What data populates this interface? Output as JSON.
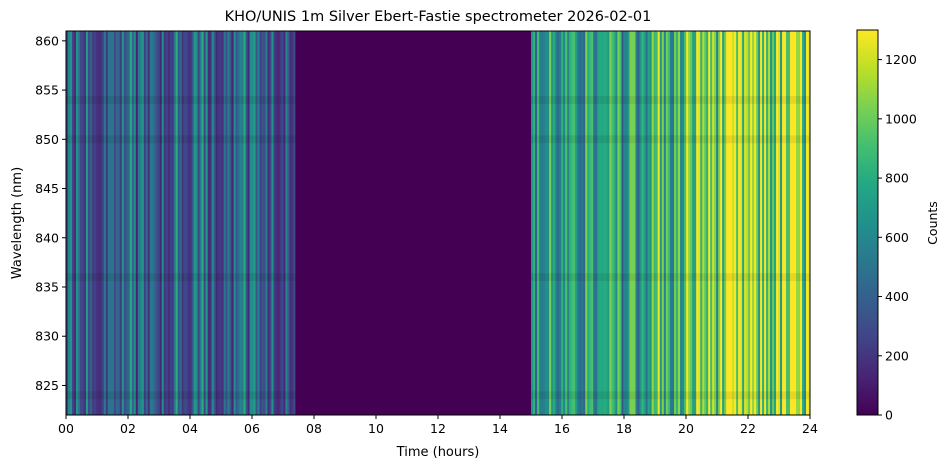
{
  "chart_data": {
    "type": "heatmap",
    "title": "KHO/UNIS 1m Silver Ebert-Fastie spectrometer 2026-02-01",
    "xlabel": "Time (hours)",
    "ylabel": "Wavelength (nm)",
    "xlim": [
      0,
      24
    ],
    "ylim": [
      822,
      861
    ],
    "x_ticks": [
      "00",
      "02",
      "04",
      "06",
      "08",
      "10",
      "12",
      "14",
      "16",
      "18",
      "20",
      "22",
      "24"
    ],
    "x_tick_values": [
      0,
      2,
      4,
      6,
      8,
      10,
      12,
      14,
      16,
      18,
      20,
      22,
      24
    ],
    "y_ticks": [
      "825",
      "830",
      "835",
      "840",
      "845",
      "850",
      "855",
      "860"
    ],
    "y_tick_values": [
      825,
      830,
      835,
      840,
      845,
      850,
      855,
      860
    ],
    "colormap": "viridis",
    "colorbar": {
      "label": "Counts",
      "range": [
        0,
        1300
      ],
      "ticks": [
        "0",
        "200",
        "400",
        "600",
        "800",
        "1000",
        "1200"
      ],
      "tick_values": [
        0,
        200,
        400,
        600,
        800,
        1000,
        1200
      ]
    },
    "segments": [
      {
        "t_start": 0.0,
        "t_end": 7.4,
        "mean_counts": 500,
        "description": "early hours, fluctuating high-low"
      },
      {
        "t_start": 7.4,
        "t_end": 15.0,
        "mean_counts": 0,
        "description": "no signal"
      },
      {
        "t_start": 15.0,
        "t_end": 18.5,
        "mean_counts": 650
      },
      {
        "t_start": 18.5,
        "t_end": 20.2,
        "mean_counts": 800
      },
      {
        "t_start": 20.2,
        "t_end": 24.0,
        "mean_counts": 1050
      }
    ]
  }
}
